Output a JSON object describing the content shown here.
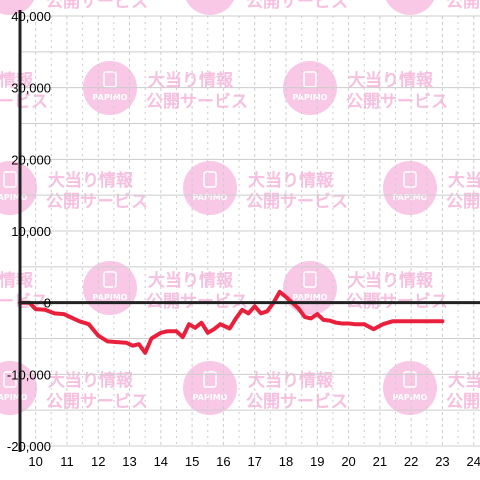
{
  "watermark": {
    "logo_text": "PAPIMO",
    "line1": "大当り情報",
    "line2": "公開サービス",
    "color": "#f9c8e6"
  },
  "colors": {
    "line": "#e8203c",
    "axis": "#222222",
    "grid": "#cccccc"
  },
  "chart_data": {
    "type": "line",
    "title": "",
    "xlabel": "",
    "ylabel": "",
    "xlim": [
      9.5,
      24.2
    ],
    "ylim": [
      -20000,
      40000
    ],
    "x_ticks": [
      10,
      11,
      12,
      13,
      14,
      15,
      16,
      17,
      18,
      19,
      20,
      21,
      22,
      23,
      24
    ],
    "x_tick_labels": [
      "10",
      "11",
      "12",
      "13",
      "14",
      "15",
      "16",
      "17",
      "18",
      "19",
      "20",
      "21",
      "22",
      "23",
      "24"
    ],
    "y_ticks": [
      40000,
      30000,
      20000,
      10000,
      0,
      -10000,
      -20000
    ],
    "y_tick_labels": [
      "40,000",
      "30,000",
      "20,000",
      "10,000",
      "0",
      "-10,000",
      "-20,000"
    ],
    "grid": true,
    "series": [
      {
        "x": [
          9.5,
          9.8,
          10.0,
          10.3,
          10.6,
          10.9,
          11.1,
          11.4,
          11.7,
          12.0,
          12.3,
          12.6,
          12.9,
          13.1,
          13.3,
          13.5,
          13.7,
          14.0,
          14.2,
          14.5,
          14.7,
          14.9,
          15.1,
          15.3,
          15.5,
          15.7,
          15.9,
          16.2,
          16.4,
          16.6,
          16.8,
          17.0,
          17.2,
          17.4,
          17.6,
          17.8,
          18.0,
          18.2,
          18.4,
          18.6,
          18.8,
          19.0,
          19.2,
          19.4,
          19.6,
          19.8,
          20.0,
          20.2,
          20.5,
          20.8,
          21.1,
          21.4,
          21.6,
          21.8,
          22.0,
          22.2,
          22.4,
          22.6,
          22.8,
          23.0
        ],
        "y": [
          0,
          0,
          -900,
          -1000,
          -1500,
          -1600,
          -2000,
          -2600,
          -3000,
          -4600,
          -5400,
          -5500,
          -5600,
          -6000,
          -5800,
          -7000,
          -5000,
          -4200,
          -4000,
          -4000,
          -4800,
          -3000,
          -3500,
          -2800,
          -4200,
          -3700,
          -3000,
          -3600,
          -2200,
          -1000,
          -1500,
          -500,
          -1500,
          -1200,
          0,
          1500,
          800,
          0,
          -800,
          -2000,
          -2200,
          -1600,
          -2400,
          -2500,
          -2800,
          -2900,
          -2900,
          -3000,
          -3000,
          -3700,
          -3000,
          -2600,
          -2600,
          -2600,
          -2600,
          -2600,
          -2600,
          -2600,
          -2600,
          -2600
        ]
      }
    ]
  }
}
